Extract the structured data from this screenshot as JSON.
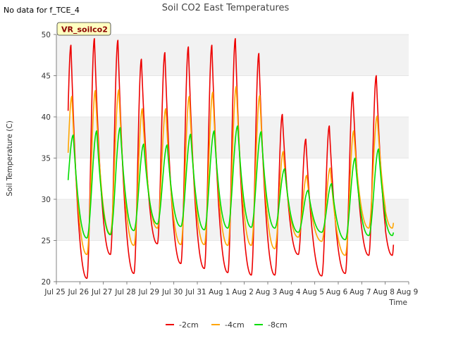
{
  "chart_data": {
    "type": "line",
    "title": "Soil CO2 East Temperatures",
    "no_data_note": "No data for f_TCE_4",
    "site_label": "VR_soilco2",
    "xlabel": "Time",
    "ylabel": "Soil Temperature (C)",
    "xlim": [
      0,
      15
    ],
    "ylim": [
      20,
      50
    ],
    "x_ticks": [
      {
        "value": 0,
        "label": "Jul 25"
      },
      {
        "value": 1,
        "label": "Jul 26"
      },
      {
        "value": 2,
        "label": "Jul 27"
      },
      {
        "value": 3,
        "label": "Jul 28"
      },
      {
        "value": 4,
        "label": "Jul 29"
      },
      {
        "value": 5,
        "label": "Jul 30"
      },
      {
        "value": 6,
        "label": "Jul 31"
      },
      {
        "value": 7,
        "label": "Aug 1"
      },
      {
        "value": 8,
        "label": "Aug 2"
      },
      {
        "value": 9,
        "label": "Aug 3"
      },
      {
        "value": 10,
        "label": "Aug 4"
      },
      {
        "value": 11,
        "label": "Aug 5"
      },
      {
        "value": 12,
        "label": "Aug 6"
      },
      {
        "value": 13,
        "label": "Aug 7"
      },
      {
        "value": 14,
        "label": "Aug 8"
      },
      {
        "value": 15,
        "label": "Aug 9"
      }
    ],
    "y_ticks": [
      20,
      25,
      30,
      35,
      40,
      45,
      50
    ],
    "grid": "horizontal bands",
    "legend_position": "bottom-center",
    "x_start": 0.5,
    "x_end": 14.35,
    "series": [
      {
        "name": "-2cm",
        "color": "#ee0000",
        "peaks": [
          48.7,
          49.5,
          49.3,
          47.0,
          47.8,
          48.5,
          48.7,
          49.5,
          47.7,
          40.3,
          37.3,
          38.9,
          43.0,
          45.0
        ],
        "troughs": [
          22.9,
          20.4,
          23.3,
          21.0,
          24.6,
          22.2,
          21.6,
          21.1,
          20.8,
          20.8,
          23.3,
          20.7,
          21.0,
          23.2
        ]
      },
      {
        "name": "-4cm",
        "color": "#ffa500",
        "peaks": [
          42.5,
          43.2,
          43.3,
          41.0,
          41.0,
          42.5,
          43.0,
          43.7,
          42.6,
          35.8,
          32.9,
          33.8,
          38.3,
          40.1
        ],
        "troughs": [
          25.9,
          23.3,
          25.8,
          24.4,
          26.5,
          24.5,
          24.5,
          24.4,
          24.4,
          24.0,
          25.4,
          24.9,
          23.2,
          26.5
        ]
      },
      {
        "name": "-8cm",
        "color": "#00dd00",
        "peaks": [
          37.8,
          38.3,
          38.7,
          36.7,
          36.6,
          37.9,
          38.3,
          38.9,
          38.2,
          33.7,
          31.1,
          31.9,
          35.0,
          36.1
        ],
        "troughs": [
          27.6,
          25.3,
          25.7,
          26.2,
          27.0,
          26.7,
          26.3,
          26.5,
          26.6,
          26.5,
          26.0,
          26.0,
          25.1,
          25.6
        ]
      }
    ]
  }
}
